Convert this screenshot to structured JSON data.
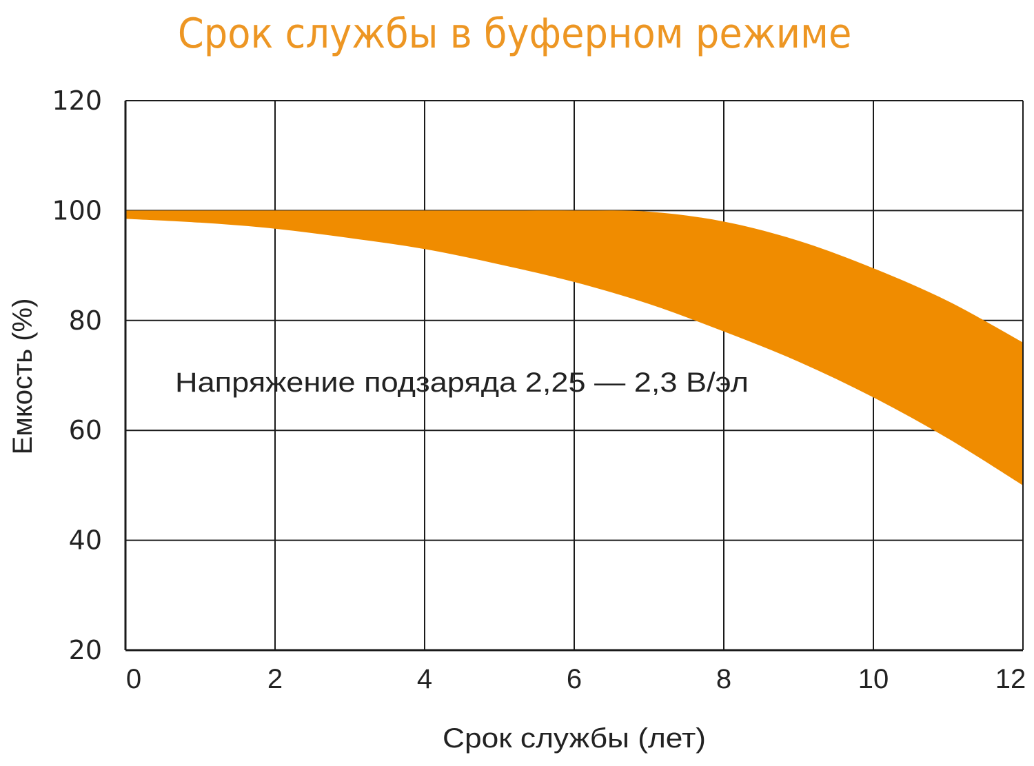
{
  "chart_data": {
    "type": "area",
    "title": "Срок службы в буферном режиме",
    "xlabel": "Срок службы (лет)",
    "ylabel": "Емкость (%)",
    "xlim": [
      0,
      12
    ],
    "ylim": [
      20,
      120
    ],
    "x_ticks": [
      "0",
      "2",
      "4",
      "6",
      "8",
      "10",
      "12"
    ],
    "y_ticks": [
      "20",
      "40",
      "60",
      "80",
      "100",
      "120"
    ],
    "grid": true,
    "legend": null,
    "annotation": "Напряжение подзаряда 2,25 — 2,3 В/эл",
    "color": "#f08c00",
    "x": [
      0,
      1,
      2,
      3,
      4,
      5,
      6,
      7,
      8,
      9,
      10,
      11,
      12
    ],
    "series": [
      {
        "name": "upper",
        "values": [
          100,
          100,
          100,
          100,
          100,
          100,
          100,
          99.8,
          98,
          94.5,
          89.5,
          83.5,
          76
        ]
      },
      {
        "name": "lower",
        "values": [
          98.5,
          97.8,
          96.7,
          95,
          93,
          90.2,
          87,
          83,
          78,
          72.5,
          66,
          58.5,
          50
        ]
      }
    ]
  }
}
